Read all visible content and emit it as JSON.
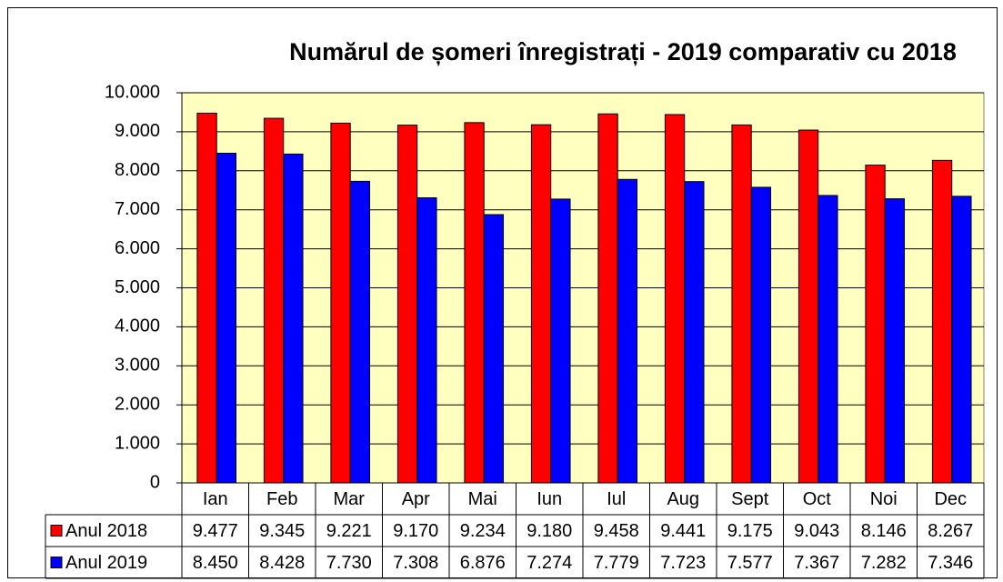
{
  "chart_data": {
    "type": "bar",
    "title": "Numărul de șomeri înregistrați - 2019 comparativ cu 2018",
    "categories": [
      "Ian",
      "Feb",
      "Mar",
      "Apr",
      "Mai",
      "Iun",
      "Iul",
      "Aug",
      "Sept",
      "Oct",
      "Noi",
      "Dec"
    ],
    "series": [
      {
        "name": "Anul 2018",
        "color": "#ff0000",
        "values": [
          9477,
          9345,
          9221,
          9170,
          9234,
          9180,
          9458,
          9441,
          9175,
          9043,
          8146,
          8267
        ],
        "value_labels": [
          "9.477",
          "9.345",
          "9.221",
          "9.170",
          "9.234",
          "9.180",
          "9.458",
          "9.441",
          "9.175",
          "9.043",
          "8.146",
          "8.267"
        ]
      },
      {
        "name": "Anul 2019",
        "color": "#0000ff",
        "values": [
          8450,
          8428,
          7730,
          7308,
          6876,
          7274,
          7779,
          7723,
          7577,
          7367,
          7282,
          7346
        ],
        "value_labels": [
          "8.450",
          "8.428",
          "7.730",
          "7.308",
          "6.876",
          "7.274",
          "7.779",
          "7.723",
          "7.577",
          "7.367",
          "7.282",
          "7.346"
        ]
      }
    ],
    "ylim": [
      0,
      10000
    ],
    "yticks": [
      0,
      {
        "value": 1000,
        "label": "1.000"
      },
      {
        "value": 2000,
        "label": "2.000"
      },
      {
        "value": 3000,
        "label": "3.000"
      },
      {
        "value": 4000,
        "label": "4.000"
      },
      {
        "value": 5000,
        "label": "5.000"
      },
      {
        "value": 6000,
        "label": "6.000"
      },
      {
        "value": 7000,
        "label": "7.000"
      },
      {
        "value": 8000,
        "label": "8.000"
      },
      {
        "value": 9000,
        "label": "9.000"
      },
      {
        "value": 10000,
        "label": "10.000"
      }
    ],
    "grid": true,
    "background": "#ffffc0"
  }
}
